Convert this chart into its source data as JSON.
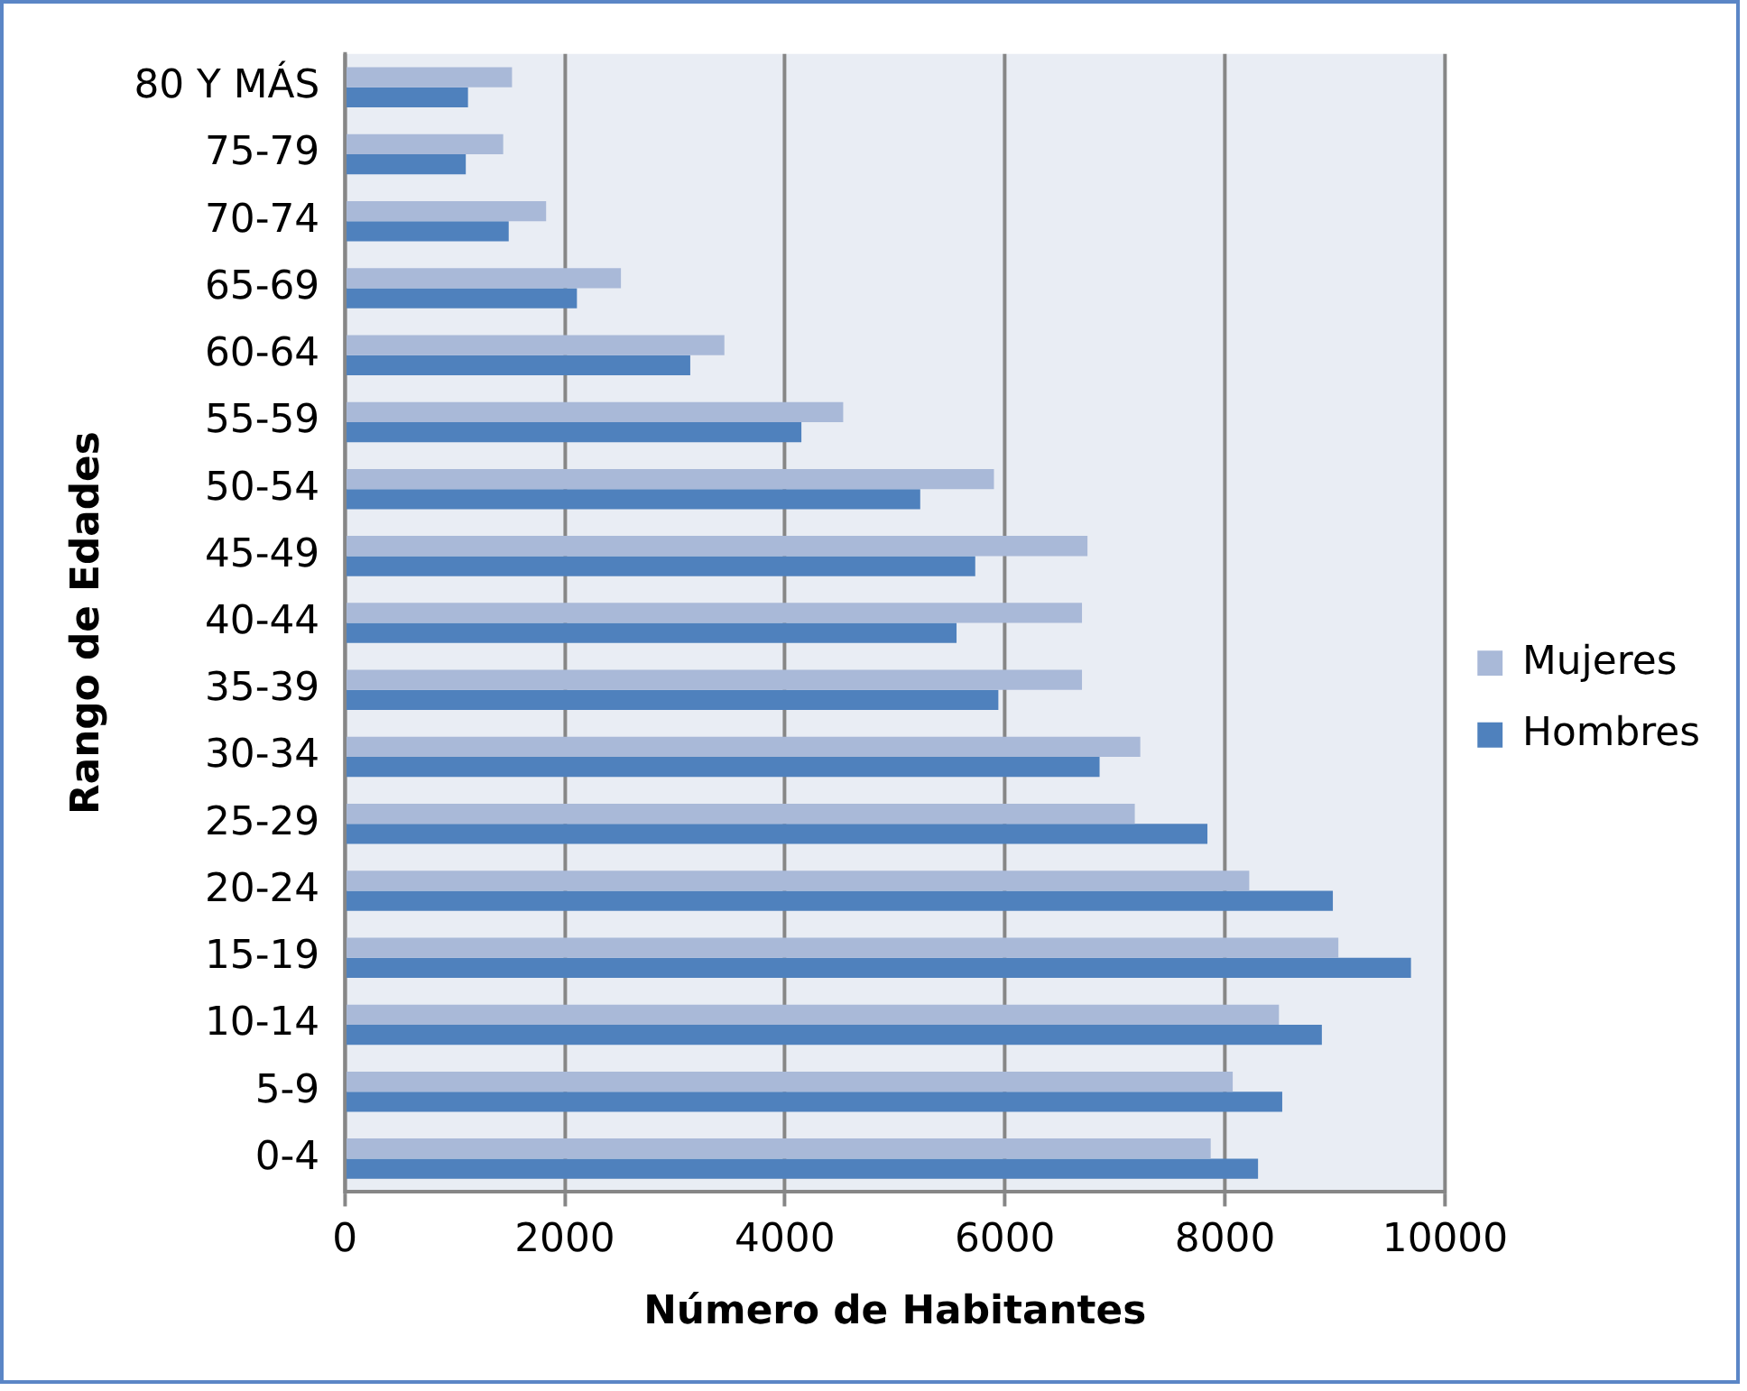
{
  "chart_data": {
    "type": "bar",
    "orientation": "horizontal",
    "xlabel": "Número de Habitantes",
    "ylabel": "Rango de Edades",
    "categories": [
      "80 Y MÁS",
      "75-79",
      "70-74",
      "65-69",
      "60-64",
      "55-59",
      "50-54",
      "45-49",
      "40-44",
      "35-39",
      "30-34",
      "25-29",
      "20-24",
      "15-19",
      "10-14",
      "5-9",
      "0-4"
    ],
    "series": [
      {
        "name": "Mujeres",
        "color": "#a9b9d8",
        "values": [
          1520,
          1440,
          1830,
          2510,
          3450,
          4530,
          5900,
          6750,
          6700,
          6700,
          7230,
          7180,
          8220,
          9030,
          8490,
          8070,
          7870
        ]
      },
      {
        "name": "Hombres",
        "color": "#4f81bd",
        "values": [
          1120,
          1100,
          1490,
          2110,
          3140,
          4150,
          5230,
          5730,
          5560,
          5940,
          6860,
          7840,
          8980,
          9690,
          8880,
          8520,
          8300
        ]
      }
    ],
    "xlim": [
      0,
      10000
    ],
    "xticks": [
      0,
      2000,
      4000,
      6000,
      8000,
      10000
    ],
    "grid": "x",
    "legend": "right"
  }
}
